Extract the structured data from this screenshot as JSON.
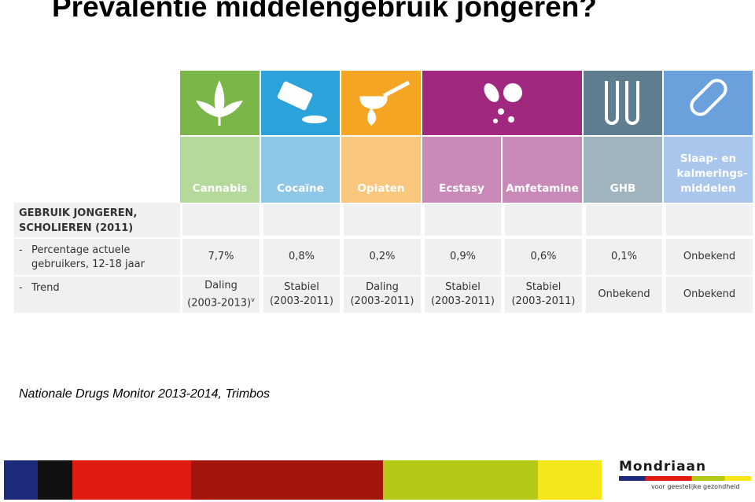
{
  "title": "Prevalentie middelengebruik jongeren?",
  "table": {
    "columns": [
      "Cannabis",
      "Cocaïne",
      "Opiaten",
      "Ecstasy",
      "Amfetamine",
      "GHB",
      "Slaap- en kalmerings-middelen"
    ],
    "section": "GEBRUIK JONGEREN, SCHOLIEREN (2011)",
    "rows": [
      {
        "label": "Percentage actuele gebruikers, 12-18 jaar",
        "cells": [
          "7,7%",
          "0,8%",
          "0,2%",
          "0,9%",
          "0,6%",
          "0,1%",
          "Onbekend"
        ]
      },
      {
        "label": "Trend",
        "cells": [
          [
            "Daling",
            "(2003-2013)",
            "v"
          ],
          [
            "Stabiel",
            "(2003-2011)"
          ],
          [
            "Daling",
            "(2003-2011)"
          ],
          [
            "Stabiel",
            "(2003-2011)"
          ],
          [
            "Stabiel",
            "(2003-2011)"
          ],
          [
            "Onbekend"
          ],
          [
            "Onbekend"
          ]
        ]
      }
    ]
  },
  "source": "Nationale Drugs Monitor 2013-2014, Trimbos",
  "logo": {
    "name": "Mondriaan",
    "tagline": "voor geestelijke gezondheid"
  }
}
